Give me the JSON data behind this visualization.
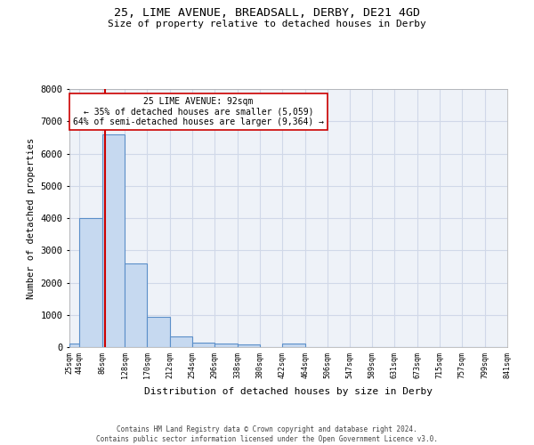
{
  "title_line1": "25, LIME AVENUE, BREADSALL, DERBY, DE21 4GD",
  "title_line2": "Size of property relative to detached houses in Derby",
  "xlabel": "Distribution of detached houses by size in Derby",
  "ylabel": "Number of detached properties",
  "annotation_line1": "25 LIME AVENUE: 92sqm",
  "annotation_line2": "← 35% of detached houses are smaller (5,059)",
  "annotation_line3": "64% of semi-detached houses are larger (9,364) →",
  "property_size": 92,
  "bin_edges": [
    25,
    44,
    86,
    128,
    170,
    212,
    254,
    296,
    338,
    380,
    422,
    464,
    506,
    547,
    589,
    631,
    673,
    715,
    757,
    799,
    841
  ],
  "bar_heights": [
    100,
    4000,
    6600,
    2600,
    950,
    330,
    130,
    110,
    70,
    0,
    100,
    0,
    0,
    0,
    0,
    0,
    0,
    0,
    0,
    0
  ],
  "bar_color": "#c6d9f0",
  "bar_edge_color": "#5b8fc9",
  "red_line_color": "#cc0000",
  "grid_color": "#d0d8e8",
  "background_color": "#eef2f8",
  "ylim": [
    0,
    8000
  ],
  "yticks": [
    0,
    1000,
    2000,
    3000,
    4000,
    5000,
    6000,
    7000,
    8000
  ],
  "footer_line1": "Contains HM Land Registry data © Crown copyright and database right 2024.",
  "footer_line2": "Contains public sector information licensed under the Open Government Licence v3.0."
}
